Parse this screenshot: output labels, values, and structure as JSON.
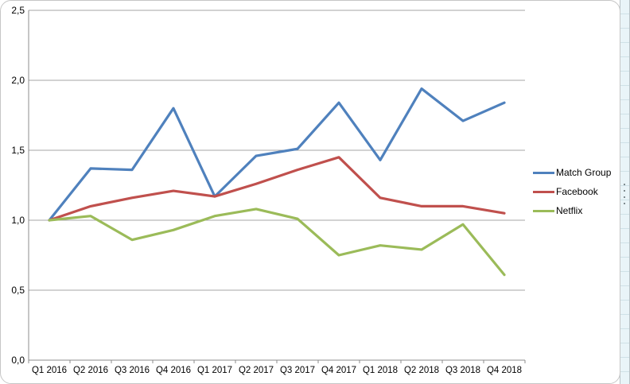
{
  "chart_data": {
    "type": "line",
    "title": "",
    "xlabel": "",
    "ylabel": "",
    "categories": [
      "Q1 2016",
      "Q2 2016",
      "Q3 2016",
      "Q4 2016",
      "Q1 2017",
      "Q2 2017",
      "Q3 2017",
      "Q4 2017",
      "Q1 2018",
      "Q2 2018",
      "Q3 2018",
      "Q4 2018"
    ],
    "series": [
      {
        "name": "Match Group",
        "color": "#4F81BD",
        "values": [
          1.0,
          1.37,
          1.36,
          1.8,
          1.17,
          1.46,
          1.51,
          1.84,
          1.43,
          1.94,
          1.71,
          1.84
        ]
      },
      {
        "name": "Facebook",
        "color": "#C0504D",
        "values": [
          1.0,
          1.1,
          1.16,
          1.21,
          1.17,
          1.26,
          1.36,
          1.45,
          1.16,
          1.1,
          1.1,
          1.05
        ]
      },
      {
        "name": "Netflix",
        "color": "#9BBB59",
        "values": [
          1.0,
          1.03,
          0.86,
          0.93,
          1.03,
          1.08,
          1.01,
          0.75,
          0.82,
          0.79,
          0.97,
          0.61
        ]
      }
    ],
    "ylim": [
      0,
      2.5
    ],
    "ytick_values": [
      0,
      0.5,
      1.0,
      1.5,
      2.0,
      2.5
    ],
    "ytick_labels": [
      "0,0",
      "0,5",
      "1,0",
      "1,5",
      "2,0",
      "2,5"
    ],
    "decimal_separator": ",",
    "grid": true,
    "legend_position": "right",
    "colors": {
      "grid_line": "#a6a6a6",
      "axis_line": "#8c8c8c",
      "tick_label": "#000000",
      "chart_background": "#ffffff",
      "sheet_strip_background": "#e9f4f8"
    }
  }
}
